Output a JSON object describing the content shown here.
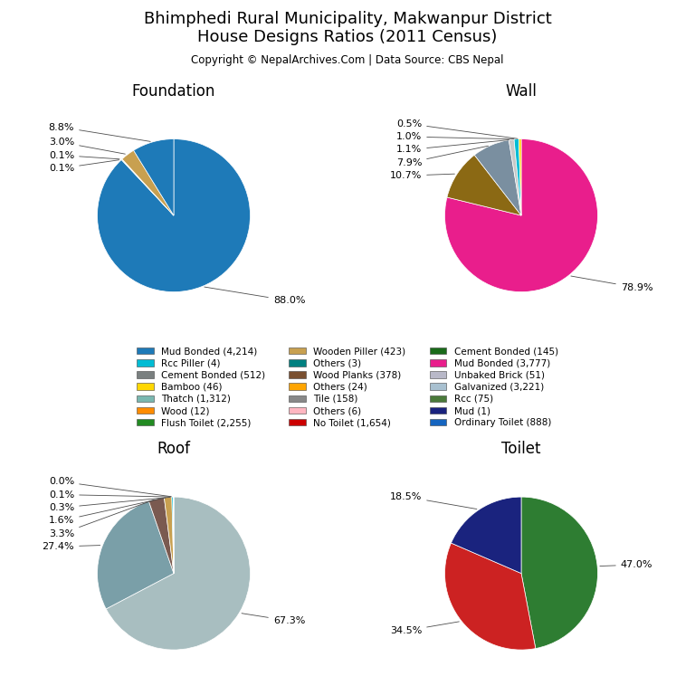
{
  "title": "Bhimphedi Rural Municipality, Makwanpur District\nHouse Designs Ratios (2011 Census)",
  "subtitle": "Copyright © NepalArchives.Com | Data Source: CBS Nepal",
  "chart_data": [
    {
      "type": "pie",
      "title": "Foundation",
      "values": [
        88.0,
        0.1,
        0.1,
        3.0,
        8.8
      ],
      "value_labels": [
        "88.0%",
        "0.1%",
        "0.1%",
        "3.0%",
        "8.8%"
      ],
      "colors": [
        "#1e7ab8",
        "#00bcd4",
        "#228B22",
        "#c8a050",
        "#1e7ab8"
      ]
    },
    {
      "type": "pie",
      "title": "Wall",
      "values": [
        78.9,
        10.7,
        7.9,
        1.1,
        1.0,
        0.5
      ],
      "value_labels": [
        "78.9%",
        "10.7%",
        "7.9%",
        "1.1%",
        "1.0%",
        "0.5%"
      ],
      "colors": [
        "#e91e8c",
        "#8B6914",
        "#7a8fa0",
        "#c8c8c8",
        "#00bcd4",
        "#ffd700"
      ]
    },
    {
      "type": "pie",
      "title": "Roof",
      "values": [
        67.3,
        27.4,
        3.3,
        1.6,
        0.3,
        0.1,
        0.0
      ],
      "value_labels": [
        "67.3%",
        "27.4%",
        "3.3%",
        "1.6%",
        "0.3%",
        "0.1%",
        "0.0%"
      ],
      "colors": [
        "#a8bec0",
        "#7a9fa8",
        "#7a5a50",
        "#c8a050",
        "#00bcd4",
        "#808080",
        "#c0c880"
      ]
    },
    {
      "type": "pie",
      "title": "Toilet",
      "values": [
        47.0,
        34.5,
        18.5
      ],
      "value_labels": [
        "47.0%",
        "34.5%",
        "18.5%"
      ],
      "colors": [
        "#2e7d32",
        "#cc2222",
        "#1a237e"
      ]
    }
  ],
  "legend_entries": [
    {
      "name": "Mud Bonded (4,214)",
      "color": "#1e7ab8"
    },
    {
      "name": "Rcc Piller (4)",
      "color": "#00bcd4"
    },
    {
      "name": "Cement Bonded (512)",
      "color": "#7a8080"
    },
    {
      "name": "Bamboo (46)",
      "color": "#ffd700"
    },
    {
      "name": "Thatch (1,312)",
      "color": "#7ab8b0"
    },
    {
      "name": "Wood (12)",
      "color": "#ff8c00"
    },
    {
      "name": "Flush Toilet (2,255)",
      "color": "#228B22"
    },
    {
      "name": "Wooden Piller (423)",
      "color": "#c8a050"
    },
    {
      "name": "Others (3)",
      "color": "#008080"
    },
    {
      "name": "Wood Planks (378)",
      "color": "#7a5030"
    },
    {
      "name": "Others (24)",
      "color": "#FFA500"
    },
    {
      "name": "Tile (158)",
      "color": "#888888"
    },
    {
      "name": "Others (6)",
      "color": "#FFB6C1"
    },
    {
      "name": "No Toilet (1,654)",
      "color": "#cc0000"
    },
    {
      "name": "Cement Bonded (145)",
      "color": "#1a6b1a"
    },
    {
      "name": "Mud Bonded (3,777)",
      "color": "#e91e8c"
    },
    {
      "name": "Unbaked Brick (51)",
      "color": "#b8b8c8"
    },
    {
      "name": "Galvanized (3,221)",
      "color": "#a8c0d0"
    },
    {
      "name": "Rcc (75)",
      "color": "#4a7a3a"
    },
    {
      "name": "Mud (1)",
      "color": "#1a237e"
    },
    {
      "name": "Ordinary Toilet (888)",
      "color": "#1565c0"
    }
  ]
}
